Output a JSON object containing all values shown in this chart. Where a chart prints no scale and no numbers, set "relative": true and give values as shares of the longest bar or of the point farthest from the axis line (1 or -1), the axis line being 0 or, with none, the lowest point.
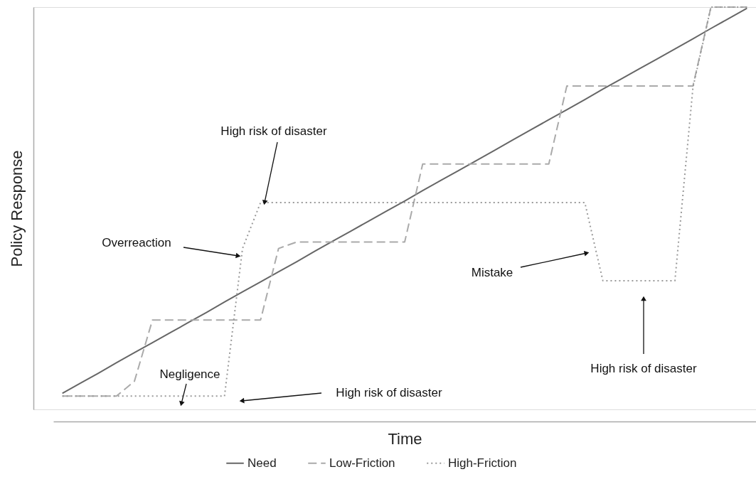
{
  "chart_data": {
    "type": "line",
    "relative": true,
    "xlabel": "Time",
    "ylabel": "Policy Response",
    "categories": [
      null,
      null,
      null,
      null,
      null,
      null,
      null,
      null,
      null,
      null,
      null,
      null,
      null,
      null,
      null,
      null,
      null,
      null,
      null,
      null,
      null,
      null,
      null,
      null,
      null,
      null,
      null,
      null,
      null,
      null,
      null,
      null,
      null,
      null,
      null,
      null,
      null,
      null,
      null
    ],
    "series": [
      {
        "name": "Need",
        "color": "#666666",
        "line_style": "solid",
        "values": [
          0.04,
          0.065,
          0.09,
          0.116,
          0.141,
          0.166,
          0.191,
          0.216,
          0.241,
          0.267,
          0.292,
          0.317,
          0.342,
          0.367,
          0.393,
          0.418,
          0.443,
          0.468,
          0.493,
          0.518,
          0.544,
          0.569,
          0.594,
          0.619,
          0.644,
          0.67,
          0.695,
          0.72,
          0.745,
          0.77,
          0.796,
          0.821,
          0.846,
          0.871,
          0.896,
          0.921,
          0.947,
          0.972,
          0.997
        ]
      },
      {
        "name": "Low-Friction",
        "color": "#aaaaaa",
        "line_style": "dashed",
        "values": [
          0.033,
          0.033,
          0.033,
          0.033,
          0.07,
          0.222,
          0.222,
          0.222,
          0.222,
          0.222,
          0.222,
          0.222,
          0.4,
          0.416,
          0.416,
          0.416,
          0.416,
          0.416,
          0.416,
          0.416,
          0.61,
          0.61,
          0.61,
          0.61,
          0.61,
          0.61,
          0.61,
          0.61,
          0.804,
          0.804,
          0.804,
          0.804,
          0.804,
          0.804,
          0.804,
          0.804,
          1.0,
          1.0,
          1.0
        ]
      },
      {
        "name": "High-Friction",
        "color": "#999999",
        "line_style": "dotted",
        "values": [
          0.033,
          0.033,
          0.033,
          0.033,
          0.033,
          0.033,
          0.033,
          0.033,
          0.033,
          0.033,
          0.4,
          0.514,
          0.514,
          0.514,
          0.514,
          0.514,
          0.514,
          0.514,
          0.514,
          0.514,
          0.514,
          0.514,
          0.514,
          0.514,
          0.514,
          0.514,
          0.514,
          0.514,
          0.514,
          0.514,
          0.32,
          0.32,
          0.32,
          0.32,
          0.32,
          0.8,
          1.0,
          1.0,
          1.0
        ]
      }
    ],
    "annotations": [
      "High risk of disaster",
      "Overreaction",
      "Negligence",
      "High risk of disaster",
      "Mistake",
      "High risk of disaster"
    ],
    "marker": "none",
    "grid": false,
    "legend": "bottom"
  }
}
